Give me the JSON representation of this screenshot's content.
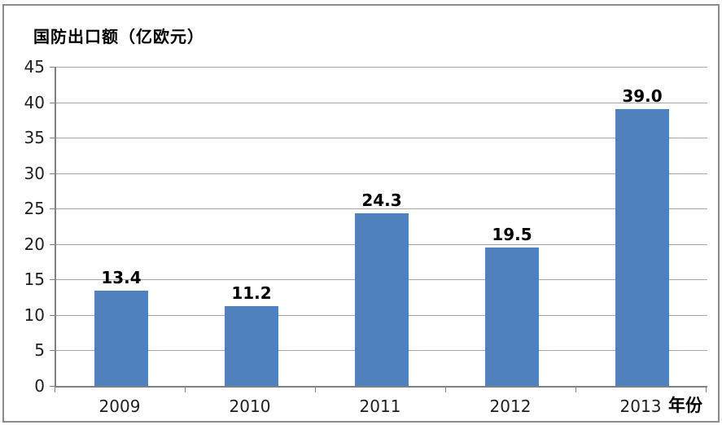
{
  "chart_data": {
    "type": "bar",
    "title": "国防出口额（亿欧元）",
    "xlabel": "年份",
    "ylabel": "",
    "categories": [
      "2009",
      "2010",
      "2011",
      "2012",
      "2013"
    ],
    "values": [
      13.4,
      11.2,
      24.3,
      19.5,
      39.0
    ],
    "value_labels": [
      "13.4",
      "11.2",
      "24.3",
      "19.5",
      "39.0"
    ],
    "ylim": [
      0,
      45
    ],
    "ytick_step": 5,
    "ytick_labels": [
      "0",
      "5",
      "10",
      "15",
      "20",
      "25",
      "30",
      "35",
      "40",
      "45"
    ],
    "grid": "horizontal",
    "legend_position": "none",
    "bar_color": "#4f81bd",
    "gridline_color": "#a6a6a6",
    "axis_color": "#808080",
    "frame_border_color": "#8c8c8c",
    "text_color": "#000000"
  }
}
